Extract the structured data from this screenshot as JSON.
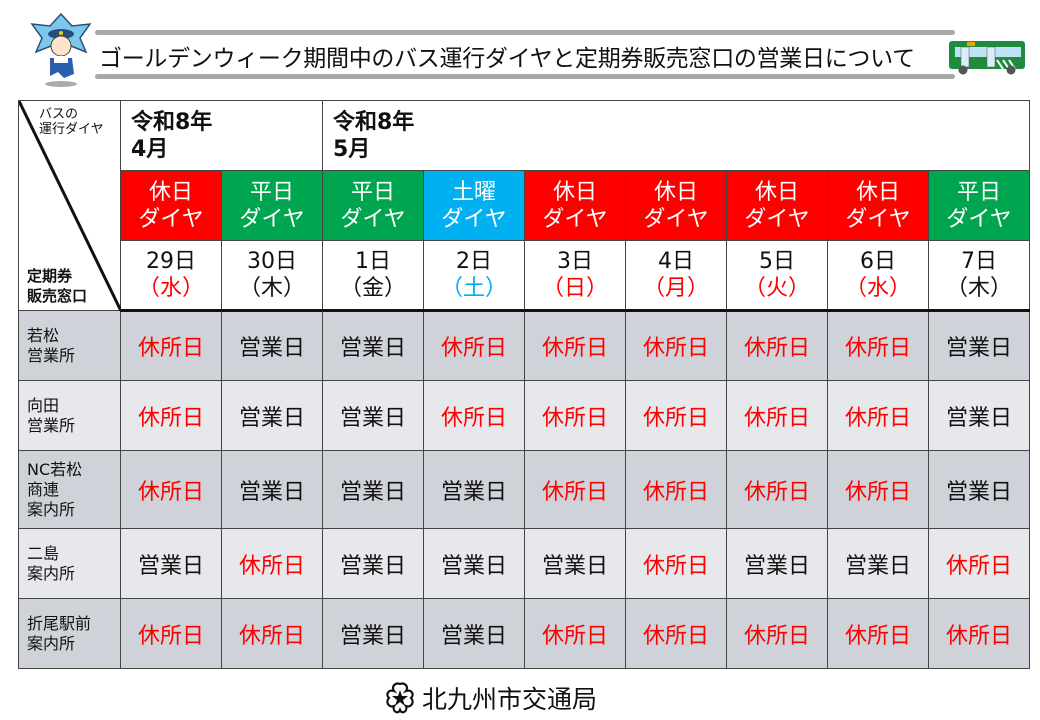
{
  "header": {
    "title": "ゴールデンウィーク期間中のバス運行ダイヤと定期券販売窓口の営業日について"
  },
  "table": {
    "corner_top": [
      "バスの",
      "運行ダイヤ"
    ],
    "corner_bottom": [
      "定期券",
      "販売窓口"
    ],
    "months": [
      {
        "label": [
          "令和8年",
          "4月"
        ],
        "span": 2
      },
      {
        "label": [
          "令和8年",
          "5月"
        ],
        "span": 7
      }
    ],
    "columns": [
      {
        "diagram": [
          "休日",
          "ダイヤ"
        ],
        "diagram_color": "#ff0000",
        "date": "29日",
        "weekday": "（水）",
        "weekday_color": "#ff0000"
      },
      {
        "diagram": [
          "平日",
          "ダイヤ"
        ],
        "diagram_color": "#00a550",
        "date": "30日",
        "weekday": "（木）",
        "weekday_color": "#111111"
      },
      {
        "diagram": [
          "平日",
          "ダイヤ"
        ],
        "diagram_color": "#00a550",
        "date": "1日",
        "weekday": "（金）",
        "weekday_color": "#111111"
      },
      {
        "diagram": [
          "土曜",
          "ダイヤ"
        ],
        "diagram_color": "#00b0f0",
        "date": "2日",
        "weekday": "（土）",
        "weekday_color": "#00b0f0"
      },
      {
        "diagram": [
          "休日",
          "ダイヤ"
        ],
        "diagram_color": "#ff0000",
        "date": "3日",
        "weekday": "（日）",
        "weekday_color": "#ff0000"
      },
      {
        "diagram": [
          "休日",
          "ダイヤ"
        ],
        "diagram_color": "#ff0000",
        "date": "4日",
        "weekday": "（月）",
        "weekday_color": "#ff0000"
      },
      {
        "diagram": [
          "休日",
          "ダイヤ"
        ],
        "diagram_color": "#ff0000",
        "date": "5日",
        "weekday": "（火）",
        "weekday_color": "#ff0000"
      },
      {
        "diagram": [
          "休日",
          "ダイヤ"
        ],
        "diagram_color": "#ff0000",
        "date": "6日",
        "weekday": "（水）",
        "weekday_color": "#ff0000"
      },
      {
        "diagram": [
          "平日",
          "ダイヤ"
        ],
        "diagram_color": "#00a550",
        "date": "7日",
        "weekday": "（木）",
        "weekday_color": "#111111"
      }
    ],
    "status_labels": {
      "open": "営業日",
      "closed": "休所日"
    },
    "status_colors": {
      "open": "#111111",
      "closed": "#ff0000"
    },
    "row_colors": [
      "#cfd3d9",
      "#e6e8eb"
    ],
    "offices": [
      {
        "name": [
          "若松",
          "営業所"
        ],
        "statuses": [
          "closed",
          "open",
          "open",
          "closed",
          "closed",
          "closed",
          "closed",
          "closed",
          "open"
        ]
      },
      {
        "name": [
          "向田",
          "営業所"
        ],
        "statuses": [
          "closed",
          "open",
          "open",
          "closed",
          "closed",
          "closed",
          "closed",
          "closed",
          "open"
        ]
      },
      {
        "name": [
          "NC若松",
          "商連",
          "案内所"
        ],
        "statuses": [
          "closed",
          "open",
          "open",
          "open",
          "closed",
          "closed",
          "closed",
          "closed",
          "open"
        ]
      },
      {
        "name": [
          "二島",
          "案内所"
        ],
        "statuses": [
          "open",
          "closed",
          "open",
          "open",
          "open",
          "closed",
          "open",
          "open",
          "closed"
        ]
      },
      {
        "name": [
          "折尾駅前",
          "案内所"
        ],
        "statuses": [
          "closed",
          "closed",
          "open",
          "open",
          "closed",
          "closed",
          "closed",
          "closed",
          "closed"
        ]
      }
    ]
  },
  "footer": {
    "organization": "北九州市交通局",
    "logo_icon": "kitakyushu-city-emblem-icon"
  }
}
